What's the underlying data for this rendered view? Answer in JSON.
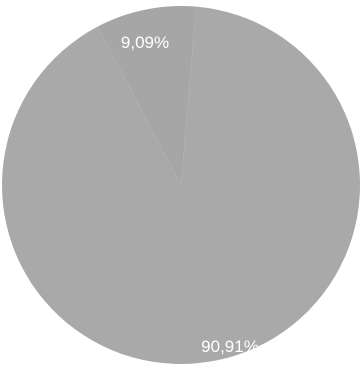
{
  "chart_data": {
    "type": "pie",
    "slices": [
      {
        "label": "9,09%",
        "value": 9.09,
        "color": "#a6a6a6"
      },
      {
        "label": "90,91%",
        "value": 90.91,
        "color": "#a9a9a9"
      }
    ]
  },
  "colors": {
    "background": "#ffffff",
    "label_text": "#ffffff"
  }
}
